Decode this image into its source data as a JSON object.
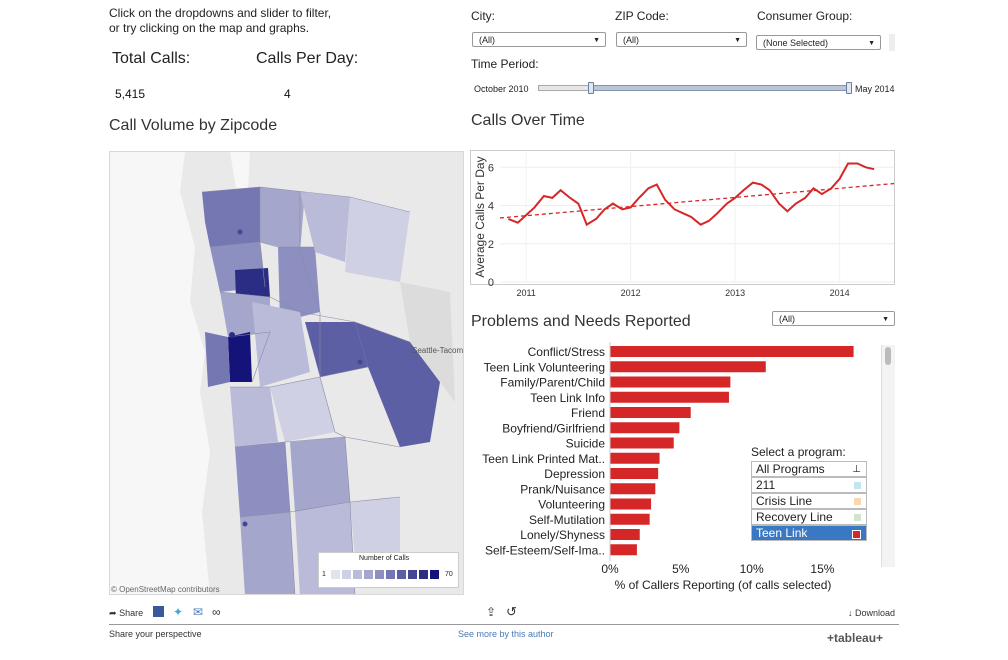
{
  "intro": {
    "line1": "Click on the dropdowns and slider to filter,",
    "line2": "or try clicking on the map and graphs."
  },
  "kpis": {
    "total_calls_label": "Total Calls:",
    "total_calls_value": "5,415",
    "calls_per_day_label": "Calls Per Day:",
    "calls_per_day_value": "4"
  },
  "filters": {
    "city_label": "City:",
    "city_value": "(All)",
    "zip_label": "ZIP Code:",
    "zip_value": "(All)",
    "consumer_label": "Consumer Group:",
    "consumer_value": "(None Selected)",
    "time_label": "Time Period:",
    "time_start": "October 2010",
    "time_end": "May 2014"
  },
  "map": {
    "title": "Call Volume by Zipcode",
    "credit": "© OpenStreetMap contributors",
    "place_seattle_tacoma": "Seattle-Tacoma",
    "legend_title": "Number of Calls",
    "legend_min": "1",
    "legend_max": "70",
    "legend_colors": [
      "#e3e3ee",
      "#cfd0e3",
      "#babbd8",
      "#a4a6cc",
      "#8d8fc0",
      "#7577b2",
      "#5d5fa4",
      "#444794",
      "#2b2d85",
      "#13137a"
    ]
  },
  "colors": {
    "accent_red": "#d62728",
    "selected_blue": "#3b78c4"
  },
  "calls_over_time": {
    "title": "Calls Over Time",
    "chart_data": {
      "type": "line",
      "title": "Calls Over Time",
      "xlabel": "",
      "ylabel": "Average Calls Per Day",
      "ylim": [
        0,
        6.8
      ],
      "yticks": [
        0,
        2,
        4,
        6
      ],
      "xticks": [
        {
          "label": "2011",
          "x": 2011.0
        },
        {
          "label": "2012",
          "x": 2012.0
        },
        {
          "label": "2013",
          "x": 2013.0
        },
        {
          "label": "2014",
          "x": 2014.0
        }
      ],
      "xlim": [
        2010.75,
        2014.52
      ],
      "series": [
        {
          "name": "Average Calls Per Day",
          "x": [
            2010.83,
            2010.92,
            2011.0,
            2011.08,
            2011.17,
            2011.25,
            2011.33,
            2011.42,
            2011.5,
            2011.58,
            2011.67,
            2011.75,
            2011.83,
            2011.92,
            2012.0,
            2012.08,
            2012.17,
            2012.25,
            2012.33,
            2012.42,
            2012.5,
            2012.58,
            2012.67,
            2012.75,
            2012.83,
            2012.92,
            2013.0,
            2013.08,
            2013.17,
            2013.25,
            2013.33,
            2013.42,
            2013.5,
            2013.58,
            2013.67,
            2013.75,
            2013.83,
            2013.92,
            2014.0,
            2014.08,
            2014.17,
            2014.25,
            2014.33
          ],
          "values": [
            3.3,
            3.1,
            3.5,
            3.9,
            4.5,
            4.4,
            4.8,
            4.4,
            4.1,
            3.0,
            3.3,
            3.8,
            4.1,
            3.8,
            3.9,
            4.4,
            4.9,
            5.1,
            4.3,
            3.8,
            3.6,
            3.4,
            3.0,
            3.2,
            3.6,
            4.1,
            4.4,
            4.8,
            5.2,
            5.1,
            4.8,
            4.1,
            3.7,
            4.1,
            4.4,
            4.9,
            4.6,
            4.9,
            5.4,
            6.2,
            6.2,
            6.0,
            5.9
          ]
        },
        {
          "name": "Trend",
          "style": "dashed",
          "x": [
            2010.75,
            2014.52
          ],
          "values": [
            3.35,
            5.15
          ]
        }
      ]
    }
  },
  "problems": {
    "title": "Problems and Needs Reported",
    "filter_value": "(All)",
    "chart_data": {
      "type": "bar",
      "orientation": "horizontal",
      "title": "Problems and Needs Reported",
      "xlabel": "% of Callers Reporting (of calls selected)",
      "ylabel": "",
      "xlim": [
        0,
        18.5
      ],
      "xticks": [
        {
          "label": "0%",
          "value": 0
        },
        {
          "label": "5%",
          "value": 5
        },
        {
          "label": "10%",
          "value": 10
        },
        {
          "label": "15%",
          "value": 15
        }
      ],
      "categories": [
        "Conflict/Stress",
        "Teen Link Volunteering",
        "Family/Parent/Child",
        "Teen Link Info",
        "Friend",
        "Boyfriend/Girlfriend",
        "Suicide",
        "Teen Link Printed Mat..",
        "Depression",
        "Prank/Nuisance",
        "Volunteering",
        "Self-Mutilation",
        "Lonely/Shyness",
        "Self-Esteem/Self-Ima.."
      ],
      "values": [
        17.2,
        11.0,
        8.5,
        8.4,
        5.7,
        4.9,
        4.5,
        3.5,
        3.4,
        3.2,
        2.9,
        2.8,
        2.1,
        1.9
      ]
    }
  },
  "program_legend": {
    "title": "Select a program:",
    "items": [
      {
        "label": "All Programs",
        "color": ""
      },
      {
        "label": "211",
        "color": "#c5e3f2"
      },
      {
        "label": "Crisis Line",
        "color": "#f7d8b5"
      },
      {
        "label": "Recovery Line",
        "color": "#cfe6cb"
      },
      {
        "label": "Teen Link",
        "color": "#d62728"
      }
    ]
  },
  "footer": {
    "share": "Share",
    "download": "Download",
    "share_perspective": "Share your perspective",
    "see_more": "See more by this author",
    "brand": "+tableau+"
  }
}
